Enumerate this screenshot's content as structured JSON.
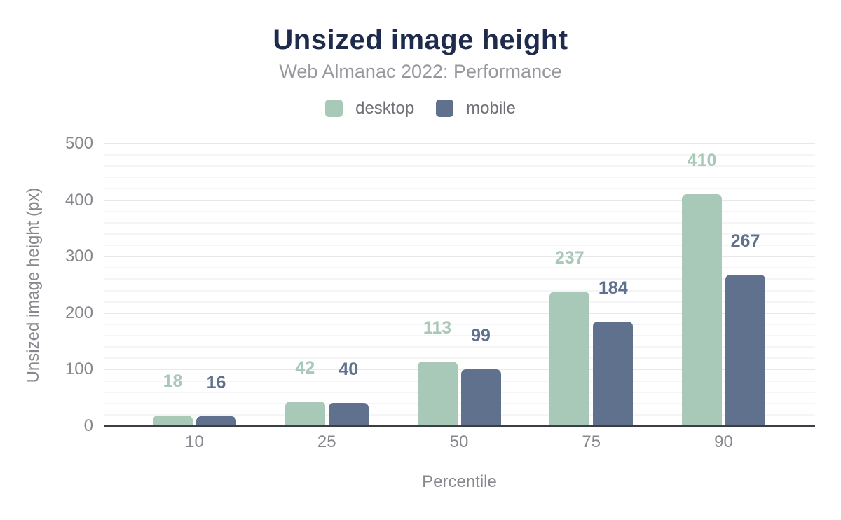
{
  "chart_data": {
    "type": "bar",
    "title": "Unsized image height",
    "subtitle": "Web Almanac 2022: Performance",
    "xlabel": "Percentile",
    "ylabel": "Unsized image height (px)",
    "categories": [
      "10",
      "25",
      "50",
      "75",
      "90"
    ],
    "series": [
      {
        "name": "desktop",
        "color": "#a9c9b8",
        "values": [
          18,
          42,
          113,
          237,
          410
        ]
      },
      {
        "name": "mobile",
        "color": "#5f718c",
        "values": [
          16,
          40,
          99,
          184,
          267
        ]
      }
    ],
    "ylim": [
      0,
      500
    ],
    "y_major_ticks": [
      0,
      100,
      200,
      300,
      400,
      500
    ],
    "y_minor_step": 20,
    "grid": "on",
    "legend_position": "top-center",
    "value_labels": "above-bars",
    "colors": {
      "title": "#1e2b4d",
      "subtitle": "#97979d",
      "tick_label": "#87888d",
      "axis_title": "#87888d",
      "legend_label": "#6f7076",
      "axis_line": "#393f45",
      "grid_major": "#e8e7eb",
      "grid_minor": "#f5f4f7",
      "background": "#ffffff"
    }
  }
}
